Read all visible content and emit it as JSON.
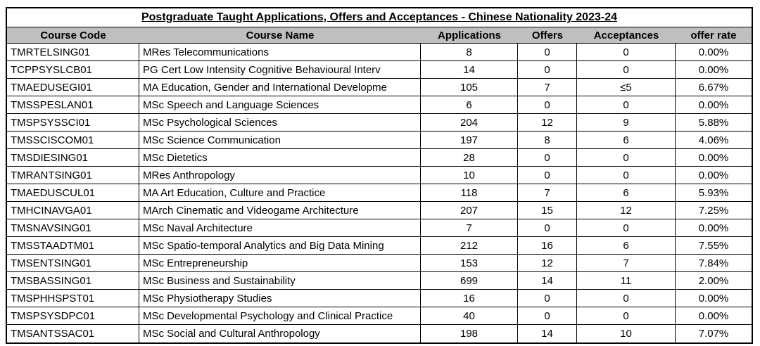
{
  "title": "Postgraduate Taught Applications, Offers and Acceptances - Chinese Nationality 2023-24",
  "colors": {
    "header_bg": "#bfbfbf",
    "border": "#000000",
    "text": "#000000",
    "row_bg": "#ffffff"
  },
  "table": {
    "headers": [
      "Course Code",
      "Course Name",
      "Applications",
      "Offers",
      "Acceptances",
      "offer rate"
    ],
    "rows": [
      {
        "code": "TMRTELSING01",
        "name": "MRes Telecommunications",
        "applications": "8",
        "offers": "0",
        "acceptances": "0",
        "offer_rate": "0.00%"
      },
      {
        "code": "TCPPSYSLCB01",
        "name": "PG Cert Low Intensity Cognitive Behavioural Interv",
        "applications": "14",
        "offers": "0",
        "acceptances": "0",
        "offer_rate": "0.00%"
      },
      {
        "code": "TMAEDUSEGI01",
        "name": "MA Education, Gender and International Developme",
        "applications": "105",
        "offers": "7",
        "acceptances": "≤5",
        "offer_rate": "6.67%"
      },
      {
        "code": "TMSSPESLAN01",
        "name": "MSc Speech and Language Sciences",
        "applications": "6",
        "offers": "0",
        "acceptances": "0",
        "offer_rate": "0.00%"
      },
      {
        "code": "TMSPSYSSCI01",
        "name": "MSc Psychological Sciences",
        "applications": "204",
        "offers": "12",
        "acceptances": "9",
        "offer_rate": "5.88%"
      },
      {
        "code": "TMSSCISCOM01",
        "name": "MSc Science Communication",
        "applications": "197",
        "offers": "8",
        "acceptances": "6",
        "offer_rate": "4.06%"
      },
      {
        "code": "TMSDIESING01",
        "name": "MSc Dietetics",
        "applications": "28",
        "offers": "0",
        "acceptances": "0",
        "offer_rate": "0.00%"
      },
      {
        "code": "TMRANTSING01",
        "name": "MRes Anthropology",
        "applications": "10",
        "offers": "0",
        "acceptances": "0",
        "offer_rate": "0.00%"
      },
      {
        "code": "TMAEDUSCUL01",
        "name": "MA Art Education, Culture and Practice",
        "applications": "118",
        "offers": "7",
        "acceptances": "6",
        "offer_rate": "5.93%"
      },
      {
        "code": "TMHCINAVGA01",
        "name": "MArch Cinematic and Videogame Architecture",
        "applications": "207",
        "offers": "15",
        "acceptances": "12",
        "offer_rate": "7.25%"
      },
      {
        "code": "TMSNAVSING01",
        "name": "MSc Naval Architecture",
        "applications": "7",
        "offers": "0",
        "acceptances": "0",
        "offer_rate": "0.00%"
      },
      {
        "code": "TMSSTAADTM01",
        "name": "MSc Spatio-temporal Analytics and Big Data Mining",
        "applications": "212",
        "offers": "16",
        "acceptances": "6",
        "offer_rate": "7.55%"
      },
      {
        "code": "TMSENTSING01",
        "name": "MSc Entrepreneurship",
        "applications": "153",
        "offers": "12",
        "acceptances": "7",
        "offer_rate": "7.84%"
      },
      {
        "code": "TMSBASSING01",
        "name": "MSc Business and Sustainability",
        "applications": "699",
        "offers": "14",
        "acceptances": "11",
        "offer_rate": "2.00%"
      },
      {
        "code": "TMSPHHSPST01",
        "name": "MSc Physiotherapy Studies",
        "applications": "16",
        "offers": "0",
        "acceptances": "0",
        "offer_rate": "0.00%"
      },
      {
        "code": "TMSPSYSDPC01",
        "name": "MSc Developmental Psychology and Clinical Practice",
        "applications": "40",
        "offers": "0",
        "acceptances": "0",
        "offer_rate": "0.00%"
      },
      {
        "code": "TMSANTSSAC01",
        "name": "MSc Social and Cultural Anthropology",
        "applications": "198",
        "offers": "14",
        "acceptances": "10",
        "offer_rate": "7.07%"
      }
    ]
  }
}
